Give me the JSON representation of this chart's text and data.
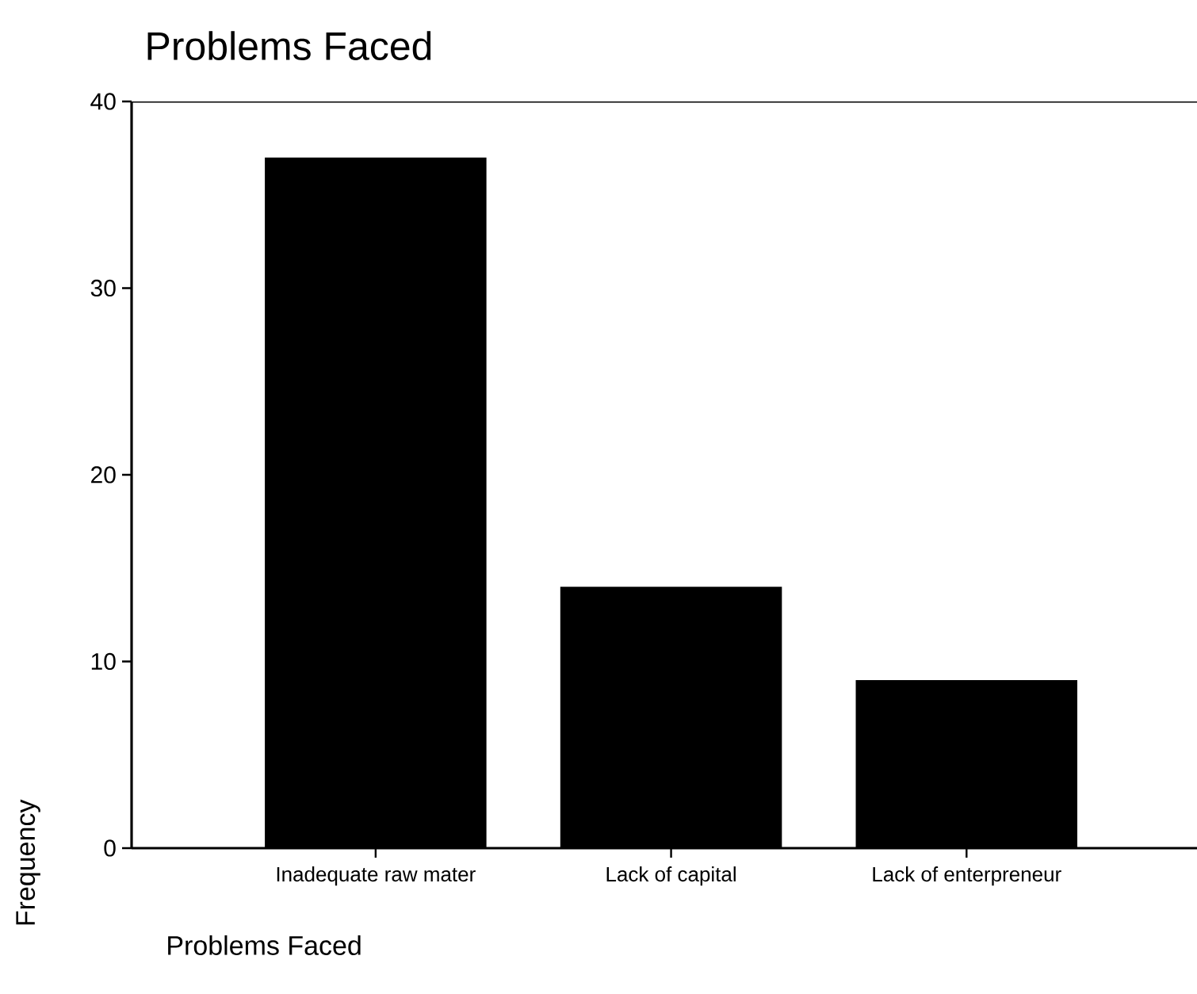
{
  "chart_data": {
    "type": "bar",
    "title": "Problems Faced",
    "xlabel": "Problems Faced",
    "ylabel": "Frequency",
    "categories": [
      "Inadequate raw mater",
      "Lack of capital",
      "Lack of enterpreneur"
    ],
    "values": [
      37,
      14,
      9
    ],
    "color": "#000000",
    "ylim": [
      0,
      40
    ],
    "yticks": [
      0,
      10,
      20,
      30,
      40
    ]
  }
}
